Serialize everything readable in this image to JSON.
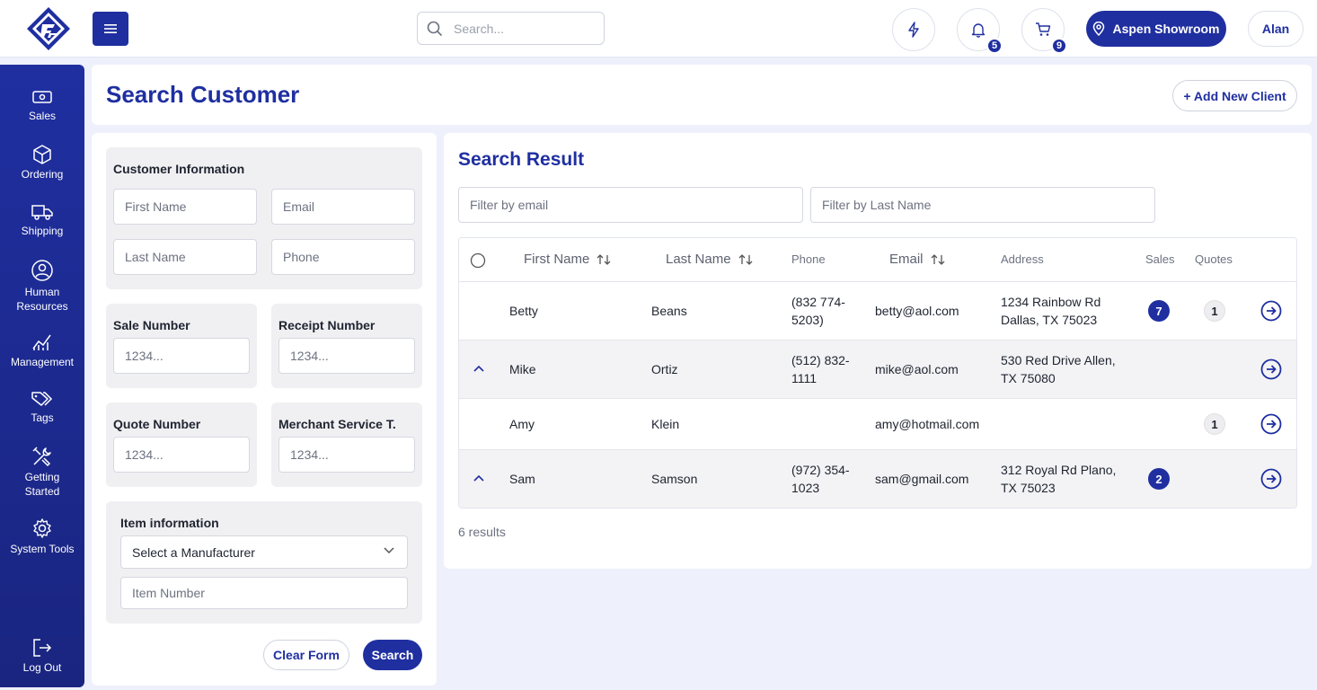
{
  "header": {
    "search_placeholder": "Search...",
    "notifications_count": "5",
    "cart_count": "9",
    "location_label": "Aspen Showroom",
    "user_name": "Alan"
  },
  "sidebar": {
    "items": [
      {
        "label": "Sales",
        "icon": "cash-icon"
      },
      {
        "label": "Ordering",
        "icon": "box-icon"
      },
      {
        "label": "Shipping",
        "icon": "truck-icon"
      },
      {
        "label": "Human Resources",
        "icon": "person-icon"
      },
      {
        "label": "Management",
        "icon": "chart-icon"
      },
      {
        "label": "Tags",
        "icon": "tags-icon"
      },
      {
        "label": "Getting Started",
        "icon": "tools-icon"
      },
      {
        "label": "System Tools",
        "icon": "gear-icon"
      }
    ],
    "logout_label": "Log Out"
  },
  "page": {
    "title": "Search Customer",
    "add_client_label": "+ Add New Client"
  },
  "search_form": {
    "customer_info": {
      "title": "Customer Information",
      "first_name_placeholder": "First Name",
      "email_placeholder": "Email",
      "last_name_placeholder": "Last Name",
      "phone_placeholder": "Phone"
    },
    "sale_number": {
      "title": "Sale Number",
      "placeholder": "1234..."
    },
    "receipt_number": {
      "title": "Receipt Number",
      "placeholder": "1234..."
    },
    "quote_number": {
      "title": "Quote Number",
      "placeholder": "1234..."
    },
    "merchant_service": {
      "title": "Merchant Service T.",
      "placeholder": "1234..."
    },
    "item_info": {
      "title": "Item information",
      "manufacturer_selected": "Select a Manufacturer",
      "item_number_placeholder": "Item Number"
    },
    "clear_label": "Clear Form",
    "search_label": "Search"
  },
  "results": {
    "title": "Search Result",
    "filter_email_placeholder": "Filter by email",
    "filter_last_name_placeholder": "Filter by Last Name",
    "columns": {
      "first_name": "First Name",
      "last_name": "Last Name",
      "phone": "Phone",
      "email": "Email",
      "address": "Address",
      "sales": "Sales",
      "quotes": "Quotes"
    },
    "rows": [
      {
        "first": "Betty",
        "last": "Beans",
        "phone_line1": "(832 774-",
        "phone_line2": "5203)",
        "email": "betty@aol.com",
        "addr_line1": "1234 Rainbow Rd",
        "addr_line2": "Dallas, TX 75023",
        "sales": "7",
        "quotes": "1"
      },
      {
        "first": "Mike",
        "last": "Ortiz",
        "phone_line1": "(512) 832-",
        "phone_line2": "1111",
        "email": "mike@aol.com",
        "addr_line1": "530 Red Drive Allen,",
        "addr_line2": "TX 75080",
        "sales": "",
        "quotes": ""
      },
      {
        "first": "Amy",
        "last": "Klein",
        "phone_line1": "",
        "phone_line2": "",
        "email": "amy@hotmail.com",
        "addr_line1": "",
        "addr_line2": "",
        "sales": "",
        "quotes": "1"
      },
      {
        "first": "Sam",
        "last": "Samson",
        "phone_line1": "(972) 354-",
        "phone_line2": "1023",
        "email": "sam@gmail.com",
        "addr_line1": "312 Royal Rd Plano,",
        "addr_line2": "TX 75023",
        "sales": "2",
        "quotes": ""
      }
    ],
    "count_label": "6 results"
  },
  "colors": {
    "primary": "#1f2fa0",
    "background": "#eef0fb",
    "row_alt": "#f3f3f5"
  }
}
